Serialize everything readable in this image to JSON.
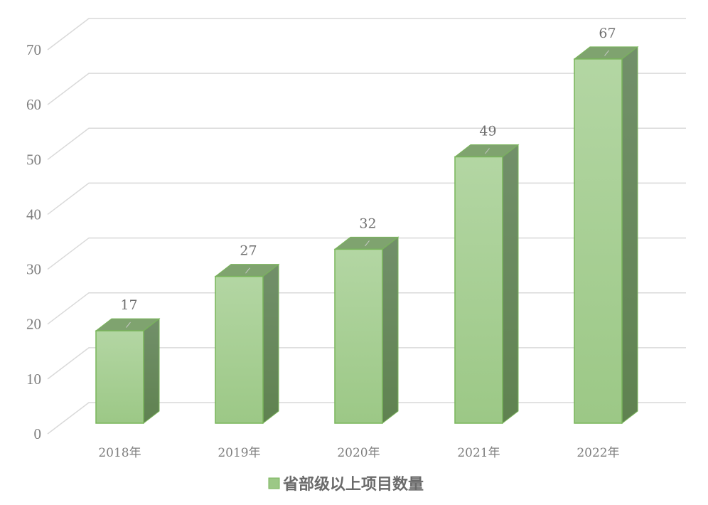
{
  "chart_data": {
    "type": "bar",
    "style": "3d-clustered-column",
    "categories": [
      "2018年",
      "2019年",
      "2020年",
      "2021年",
      "2022年"
    ],
    "series": [
      {
        "name": "省部级以上项目数量",
        "values": [
          17,
          27,
          32,
          49,
          67
        ]
      }
    ],
    "data_labels": [
      "17",
      "27",
      "32",
      "49",
      "67"
    ],
    "ylim": [
      0,
      70
    ],
    "yticks": [
      0,
      10,
      20,
      30,
      40,
      50,
      60,
      70
    ],
    "ytick_labels": [
      "0",
      "10",
      "20",
      "30",
      "40",
      "50",
      "60",
      "70"
    ],
    "grid": true,
    "legend": "bottom",
    "colors": {
      "bar_front_top": "#b3d6a3",
      "bar_front_bottom": "#9cc886",
      "bar_side": "#6b8f5d",
      "bar_top": "#7fa36f",
      "bar_edge": "#79b55a",
      "grid": "#d9d9d9",
      "text": "#7f7f7f"
    }
  }
}
